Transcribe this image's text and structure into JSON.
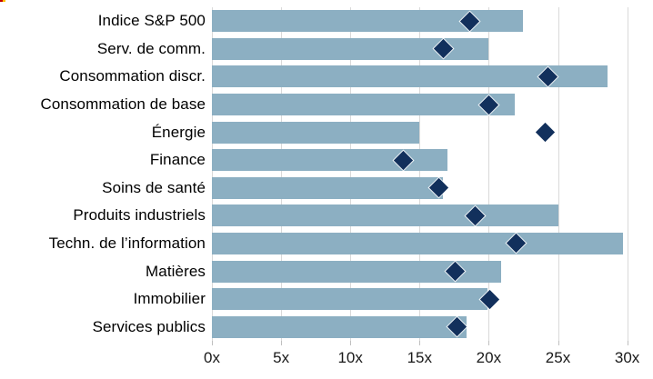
{
  "chart_data": {
    "type": "bar",
    "orientation": "horizontal",
    "title": "",
    "categories": [
      "Indice S&P 500",
      "Serv. de comm.",
      "Consommation discr.",
      "Consommation de base",
      "Énergie",
      "Finance",
      "Soins de santé",
      "Produits industriels",
      "Techn. de l’information",
      "Matières",
      "Immobilier",
      "Services publics"
    ],
    "bar_values": [
      22.5,
      20.0,
      28.6,
      21.9,
      15.0,
      17.0,
      16.7,
      25.0,
      29.7,
      20.9,
      19.9,
      18.4
    ],
    "diamond_values": [
      18.6,
      16.7,
      24.3,
      20.0,
      24.1,
      13.8,
      16.4,
      19.0,
      22.0,
      17.6,
      20.1,
      17.7
    ],
    "x_tick_labels": [
      "0x",
      "5x",
      "10x",
      "15x",
      "20x",
      "25x",
      "30x"
    ],
    "x_tick_values": [
      0,
      5,
      10,
      15,
      20,
      25,
      30
    ],
    "xlim": [
      0,
      31.9
    ],
    "grid": true,
    "legend": "none",
    "colors": {
      "bar": "#8CAFC2",
      "diamond": "#12305C",
      "gridline": "#D9D9D9",
      "tick_mark": "#BFBFBF",
      "label_text": "#000000",
      "corner_mark_red": "#C00000",
      "corner_mark_yellow": "#FFC000"
    }
  }
}
